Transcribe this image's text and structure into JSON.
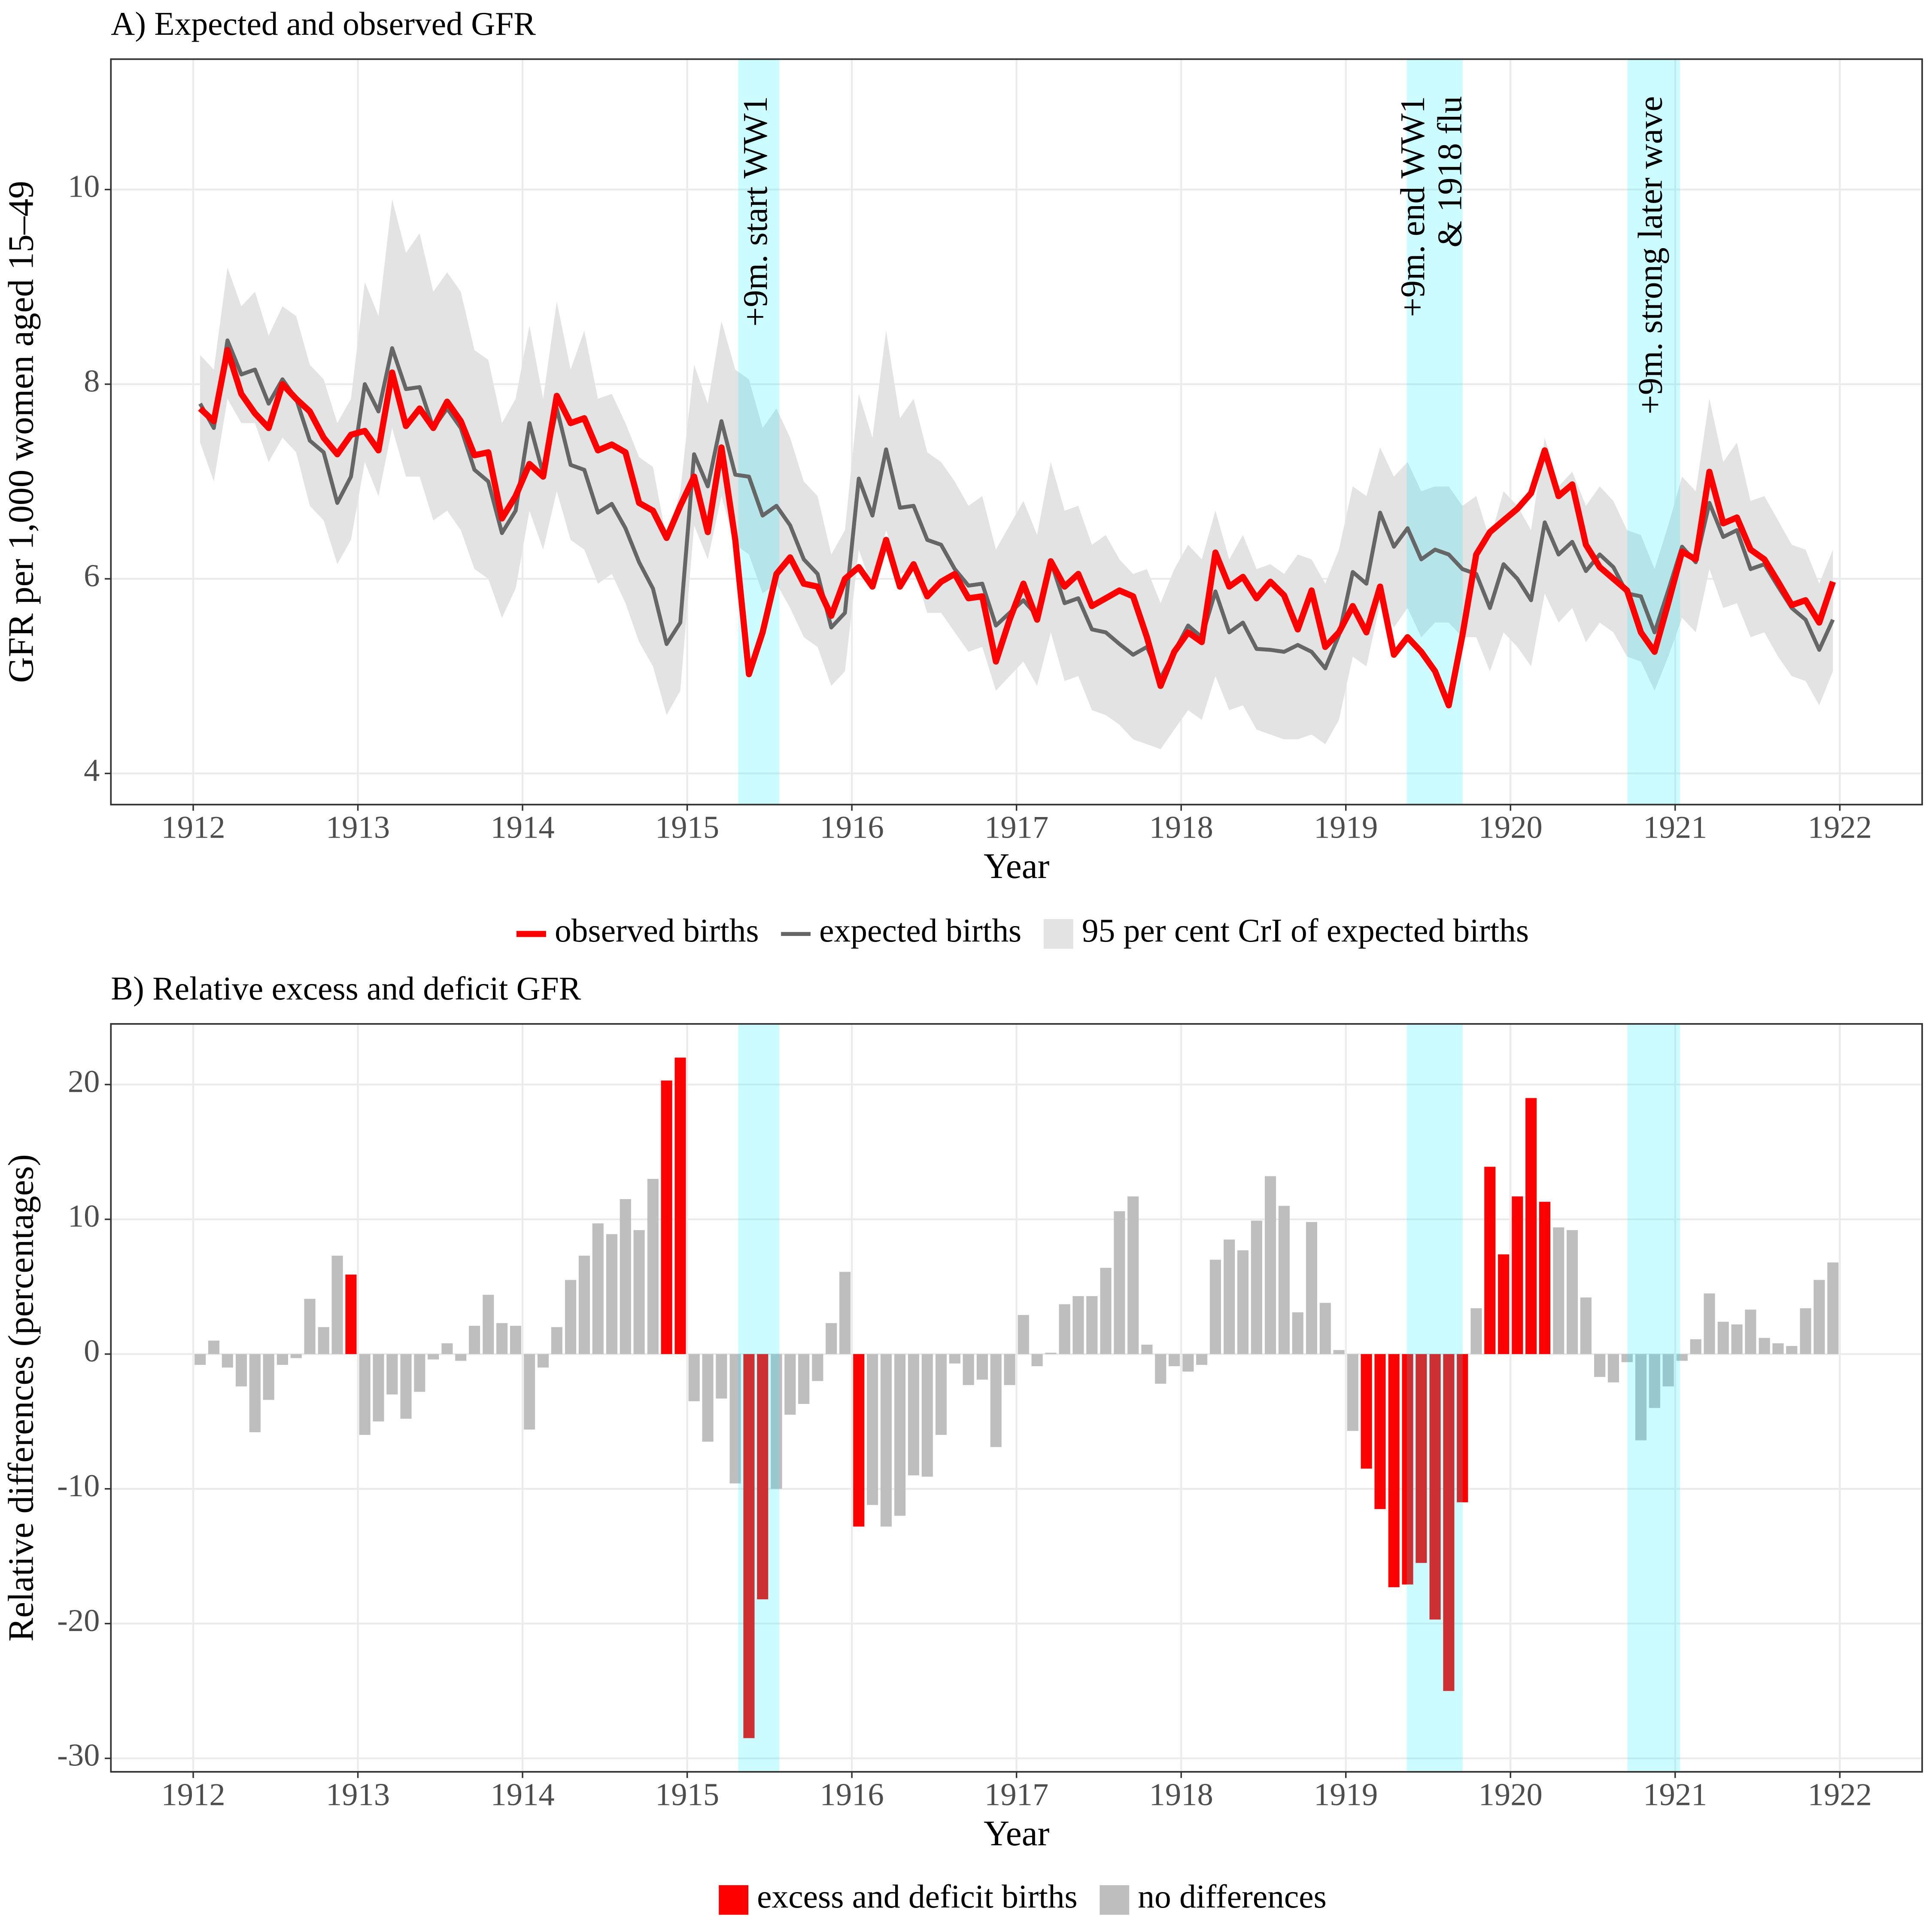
{
  "chart_data": [
    {
      "type": "line",
      "title": "A) Expected and observed GFR",
      "xlabel": "Year",
      "ylabel": "GFR per 1,000 women aged 15–49",
      "xlim": [
        1911.5,
        1922.5
      ],
      "xticks": [
        1912,
        1913,
        1914,
        1915,
        1916,
        1917,
        1918,
        1919,
        1920,
        1921,
        1922
      ],
      "ylim": [
        3.68,
        11.34
      ],
      "yticks": [
        4,
        6,
        8,
        10
      ],
      "grid": true,
      "legend": "bottom",
      "highlights": [
        {
          "xmin": 1915.31,
          "xmax": 1915.56,
          "color": "#00f0ff",
          "label": [
            "+9m. start WW1"
          ]
        },
        {
          "xmin": 1919.37,
          "xmax": 1919.71,
          "color": "#00f0ff",
          "label": [
            "+9m. end WW1",
            "& 1918 flu"
          ]
        },
        {
          "xmin": 1920.71,
          "xmax": 1921.03,
          "color": "#00f0ff",
          "label": [
            "+9m. strong later wave"
          ]
        }
      ],
      "x": [
        1912.042,
        1912.125,
        1912.208,
        1912.292,
        1912.375,
        1912.458,
        1912.542,
        1912.625,
        1912.708,
        1912.792,
        1912.875,
        1912.958,
        1913.042,
        1913.125,
        1913.208,
        1913.292,
        1913.375,
        1913.458,
        1913.542,
        1913.625,
        1913.708,
        1913.792,
        1913.875,
        1913.958,
        1914.042,
        1914.125,
        1914.208,
        1914.292,
        1914.375,
        1914.458,
        1914.542,
        1914.625,
        1914.708,
        1914.792,
        1914.875,
        1914.958,
        1915.042,
        1915.125,
        1915.208,
        1915.292,
        1915.375,
        1915.458,
        1915.542,
        1915.625,
        1915.708,
        1915.792,
        1915.875,
        1915.958,
        1916.042,
        1916.125,
        1916.208,
        1916.292,
        1916.375,
        1916.458,
        1916.542,
        1916.625,
        1916.708,
        1916.792,
        1916.875,
        1916.958,
        1917.042,
        1917.125,
        1917.208,
        1917.292,
        1917.375,
        1917.458,
        1917.542,
        1917.625,
        1917.708,
        1917.792,
        1917.875,
        1917.958,
        1918.042,
        1918.125,
        1918.208,
        1918.292,
        1918.375,
        1918.458,
        1918.542,
        1918.625,
        1918.708,
        1918.792,
        1918.875,
        1918.958,
        1919.042,
        1919.125,
        1919.208,
        1919.292,
        1919.375,
        1919.458,
        1919.542,
        1919.625,
        1919.708,
        1919.792,
        1919.875,
        1919.958,
        1920.042,
        1920.125,
        1920.208,
        1920.292,
        1920.375,
        1920.458,
        1920.542,
        1920.625,
        1920.708,
        1920.792,
        1920.875,
        1920.958,
        1921.042,
        1921.125,
        1921.208,
        1921.292,
        1921.375,
        1921.458,
        1921.542,
        1921.625,
        1921.708,
        1921.792,
        1921.875,
        1921.958
      ],
      "band": {
        "name": "95 per cent CrI of expected births",
        "color": "#e3e3e3",
        "upper": [
          8.3,
          8.15,
          9.2,
          8.8,
          8.95,
          8.5,
          8.8,
          8.7,
          8.2,
          8.05,
          7.6,
          7.85,
          9.05,
          8.7,
          9.9,
          9.35,
          9.55,
          8.95,
          9.15,
          8.95,
          8.35,
          8.25,
          7.6,
          7.85,
          8.6,
          7.85,
          8.85,
          8.15,
          8.55,
          7.85,
          7.9,
          7.6,
          7.25,
          7.15,
          6.4,
          6.9,
          8.2,
          7.8,
          8.65,
          8.15,
          8.05,
          7.55,
          7.75,
          7.45,
          7.0,
          6.85,
          6.25,
          6.5,
          7.9,
          7.45,
          8.55,
          7.65,
          7.85,
          7.3,
          7.2,
          7.0,
          6.75,
          6.85,
          6.3,
          6.55,
          6.8,
          6.45,
          7.2,
          6.7,
          6.75,
          6.35,
          6.45,
          6.2,
          6.05,
          6.1,
          5.75,
          6.1,
          6.35,
          6.2,
          6.7,
          6.2,
          6.45,
          6.1,
          6.15,
          6.05,
          6.25,
          6.2,
          5.95,
          6.3,
          6.95,
          6.85,
          7.35,
          7.05,
          7.2,
          6.9,
          6.95,
          6.95,
          6.75,
          6.85,
          6.4,
          6.9,
          6.75,
          6.5,
          7.45,
          6.95,
          7.1,
          6.75,
          6.95,
          6.8,
          6.5,
          6.45,
          6.1,
          6.55,
          7.05,
          6.9,
          7.85,
          7.2,
          7.4,
          6.8,
          6.85,
          6.6,
          6.35,
          6.3,
          5.95,
          6.3
        ],
        "lower": [
          7.4,
          7.0,
          7.85,
          7.6,
          7.6,
          7.2,
          7.45,
          7.3,
          6.75,
          6.6,
          6.15,
          6.4,
          7.2,
          6.85,
          7.55,
          7.05,
          7.05,
          6.6,
          6.7,
          6.5,
          6.1,
          6.0,
          5.6,
          5.9,
          6.7,
          6.3,
          6.9,
          6.4,
          6.3,
          5.95,
          6.05,
          5.75,
          5.35,
          5.1,
          4.6,
          4.85,
          6.55,
          6.2,
          6.85,
          6.35,
          6.25,
          5.85,
          5.95,
          5.7,
          5.4,
          5.3,
          4.9,
          5.05,
          6.3,
          5.9,
          6.5,
          6.05,
          6.1,
          5.65,
          5.65,
          5.45,
          5.25,
          5.3,
          4.85,
          5.0,
          5.15,
          4.9,
          5.45,
          4.95,
          5.0,
          4.65,
          4.6,
          4.5,
          4.35,
          4.3,
          4.25,
          4.45,
          4.65,
          4.55,
          5.0,
          4.65,
          4.7,
          4.45,
          4.4,
          4.35,
          4.35,
          4.4,
          4.3,
          4.55,
          5.2,
          5.1,
          5.75,
          5.5,
          5.7,
          5.4,
          5.55,
          5.55,
          5.4,
          5.4,
          5.05,
          5.45,
          5.3,
          5.1,
          5.85,
          5.55,
          5.7,
          5.35,
          5.55,
          5.45,
          5.2,
          5.15,
          4.85,
          5.2,
          5.6,
          5.45,
          6.1,
          5.7,
          5.75,
          5.4,
          5.45,
          5.2,
          5.0,
          4.95,
          4.7,
          5.05
        ]
      },
      "series": [
        {
          "name": "observed births",
          "color": "#ff0000",
          "values": [
            7.75,
            7.62,
            8.35,
            7.9,
            7.7,
            7.55,
            8.0,
            7.85,
            7.72,
            7.45,
            7.28,
            7.48,
            7.52,
            7.32,
            8.12,
            7.57,
            7.75,
            7.55,
            7.82,
            7.62,
            7.27,
            7.3,
            6.62,
            6.85,
            7.18,
            7.05,
            7.88,
            7.6,
            7.65,
            7.32,
            7.38,
            7.3,
            6.78,
            6.7,
            6.42,
            6.75,
            7.05,
            6.48,
            7.35,
            6.4,
            5.02,
            5.45,
            6.05,
            6.22,
            5.95,
            5.92,
            5.62,
            6.0,
            6.12,
            5.92,
            6.4,
            5.92,
            6.15,
            5.82,
            5.97,
            6.05,
            5.8,
            5.82,
            5.15,
            5.58,
            5.95,
            5.58,
            6.18,
            5.92,
            6.05,
            5.72,
            5.8,
            5.88,
            5.82,
            5.4,
            4.9,
            5.25,
            5.45,
            5.35,
            6.27,
            5.92,
            6.02,
            5.8,
            5.97,
            5.83,
            5.48,
            5.88,
            5.3,
            5.45,
            5.72,
            5.45,
            5.92,
            5.22,
            5.4,
            5.25,
            5.05,
            4.7,
            5.42,
            6.25,
            6.48,
            6.6,
            6.72,
            6.88,
            7.32,
            6.85,
            6.97,
            6.35,
            6.12,
            6.0,
            5.88,
            5.45,
            5.25,
            5.75,
            6.28,
            6.2,
            7.1,
            6.57,
            6.63,
            6.3,
            6.2,
            5.97,
            5.73,
            5.78,
            5.55,
            5.97
          ]
        },
        {
          "name": "expected births",
          "color": "#666666",
          "values": [
            7.8,
            7.55,
            8.45,
            8.1,
            8.15,
            7.8,
            8.05,
            7.85,
            7.42,
            7.3,
            6.78,
            7.05,
            8.0,
            7.72,
            8.37,
            7.95,
            7.97,
            7.55,
            7.75,
            7.55,
            7.12,
            7.0,
            6.47,
            6.7,
            7.6,
            7.08,
            7.75,
            7.17,
            7.12,
            6.68,
            6.77,
            6.52,
            6.17,
            5.9,
            5.33,
            5.55,
            7.28,
            6.95,
            7.62,
            7.07,
            7.05,
            6.65,
            6.75,
            6.55,
            6.2,
            6.05,
            5.5,
            5.65,
            7.03,
            6.65,
            7.33,
            6.73,
            6.75,
            6.4,
            6.35,
            6.1,
            5.93,
            5.95,
            5.52,
            5.65,
            5.78,
            5.62,
            6.18,
            5.75,
            5.8,
            5.48,
            5.45,
            5.33,
            5.22,
            5.3,
            4.98,
            5.25,
            5.52,
            5.4,
            5.87,
            5.45,
            5.55,
            5.28,
            5.27,
            5.25,
            5.32,
            5.25,
            5.08,
            5.42,
            6.07,
            5.95,
            6.68,
            6.33,
            6.52,
            6.2,
            6.3,
            6.25,
            6.1,
            6.05,
            5.7,
            6.15,
            6.0,
            5.78,
            6.58,
            6.25,
            6.38,
            6.08,
            6.25,
            6.12,
            5.85,
            5.82,
            5.45,
            5.88,
            6.33,
            6.17,
            6.78,
            6.43,
            6.5,
            6.1,
            6.15,
            5.92,
            5.7,
            5.58,
            5.27,
            5.58
          ]
        }
      ]
    },
    {
      "type": "bar",
      "title": "B) Relative excess and deficit GFR",
      "xlabel": "Year",
      "ylabel": "Relative differences (percentages)",
      "xlim": [
        1911.5,
        1922.5
      ],
      "xticks": [
        1912,
        1913,
        1914,
        1915,
        1916,
        1917,
        1918,
        1919,
        1920,
        1921,
        1922
      ],
      "ylim": [
        -31,
        24.5
      ],
      "yticks": [
        -30,
        -20,
        -10,
        0,
        10,
        20
      ],
      "grid": true,
      "legend": "bottom",
      "highlights": [
        {
          "xmin": 1915.31,
          "xmax": 1915.56,
          "color": "#00f0ff"
        },
        {
          "xmin": 1919.37,
          "xmax": 1919.71,
          "color": "#00f0ff"
        },
        {
          "xmin": 1920.71,
          "xmax": 1921.03,
          "color": "#00f0ff"
        }
      ],
      "x": [
        1912.042,
        1912.125,
        1912.208,
        1912.292,
        1912.375,
        1912.458,
        1912.542,
        1912.625,
        1912.708,
        1912.792,
        1912.875,
        1912.958,
        1913.042,
        1913.125,
        1913.208,
        1913.292,
        1913.375,
        1913.458,
        1913.542,
        1913.625,
        1913.708,
        1913.792,
        1913.875,
        1913.958,
        1914.042,
        1914.125,
        1914.208,
        1914.292,
        1914.375,
        1914.458,
        1914.542,
        1914.625,
        1914.708,
        1914.792,
        1914.875,
        1914.958,
        1915.042,
        1915.125,
        1915.208,
        1915.292,
        1915.375,
        1915.458,
        1915.542,
        1915.625,
        1915.708,
        1915.792,
        1915.875,
        1915.958,
        1916.042,
        1916.125,
        1916.208,
        1916.292,
        1916.375,
        1916.458,
        1916.542,
        1916.625,
        1916.708,
        1916.792,
        1916.875,
        1916.958,
        1917.042,
        1917.125,
        1917.208,
        1917.292,
        1917.375,
        1917.458,
        1917.542,
        1917.625,
        1917.708,
        1917.792,
        1917.875,
        1917.958,
        1918.042,
        1918.125,
        1918.208,
        1918.292,
        1918.375,
        1918.458,
        1918.542,
        1918.625,
        1918.708,
        1918.792,
        1918.875,
        1918.958,
        1919.042,
        1919.125,
        1919.208,
        1919.292,
        1919.375,
        1919.458,
        1919.542,
        1919.625,
        1919.708,
        1919.792,
        1919.875,
        1919.958,
        1920.042,
        1920.125,
        1920.208,
        1920.292,
        1920.375,
        1920.458,
        1920.542,
        1920.625,
        1920.708,
        1920.792,
        1920.875,
        1920.958,
        1921.042,
        1921.125,
        1921.208,
        1921.292,
        1921.375,
        1921.458,
        1921.542,
        1921.625,
        1921.708,
        1921.792,
        1921.875,
        1921.958
      ],
      "series": [
        {
          "name": "excess and deficit births",
          "color": "#ff0000",
          "values": [
            null,
            null,
            null,
            null,
            null,
            null,
            null,
            null,
            null,
            null,
            null,
            5.9,
            null,
            null,
            null,
            null,
            null,
            null,
            null,
            null,
            null,
            null,
            null,
            null,
            null,
            null,
            null,
            null,
            null,
            null,
            null,
            null,
            null,
            null,
            20.3,
            22,
            null,
            null,
            null,
            null,
            -28.5,
            -18.2,
            null,
            null,
            null,
            null,
            null,
            null,
            -12.8,
            null,
            null,
            null,
            null,
            null,
            null,
            null,
            null,
            null,
            null,
            null,
            null,
            null,
            null,
            null,
            null,
            null,
            null,
            null,
            null,
            null,
            null,
            null,
            null,
            null,
            null,
            null,
            null,
            null,
            null,
            null,
            null,
            null,
            null,
            null,
            null,
            -8.5,
            -11.5,
            -17.3,
            -17.1,
            -15.5,
            -19.7,
            -25,
            -11,
            null,
            13.9,
            7.4,
            11.7,
            19,
            11.3,
            null,
            null,
            null,
            null,
            null,
            null,
            null,
            null,
            null,
            null,
            null,
            null,
            null,
            null,
            null,
            null,
            null,
            null,
            null,
            null,
            null
          ]
        },
        {
          "name": "no differences",
          "color": "#bebebe",
          "values": [
            -0.8,
            1,
            -1,
            -2.4,
            -5.8,
            -3.4,
            -0.8,
            -0.3,
            4.1,
            2,
            7.3,
            null,
            -6,
            -5,
            -3,
            -4.8,
            -2.8,
            -0.4,
            0.8,
            -0.5,
            2.1,
            4.4,
            2.3,
            2.1,
            -5.6,
            -1,
            2,
            5.5,
            7.3,
            9.7,
            8.9,
            11.5,
            9.2,
            13,
            null,
            null,
            -3.5,
            -6.5,
            -3.3,
            -9.6,
            null,
            null,
            -10,
            -4.5,
            -3.7,
            -2,
            2.3,
            6.1,
            null,
            -11.2,
            -12.8,
            -12,
            -9,
            -9.1,
            -6,
            -0.7,
            -2.3,
            -1.9,
            -6.9,
            -2.3,
            2.9,
            -0.9,
            0.1,
            3.7,
            4.3,
            4.3,
            6.4,
            10.6,
            11.7,
            0.7,
            -2.2,
            -0.9,
            -1.3,
            -0.8,
            7,
            8.5,
            7.7,
            9.9,
            13.2,
            11,
            3.1,
            9.8,
            3.8,
            0.3,
            -5.7,
            null,
            null,
            null,
            null,
            null,
            null,
            null,
            null,
            3.4,
            null,
            null,
            null,
            null,
            null,
            9.4,
            9.2,
            4.2,
            -1.7,
            -2.1,
            -0.6,
            -6.4,
            -4,
            -2.4,
            -0.5,
            1.1,
            4.5,
            2.4,
            2.2,
            3.3,
            1.2,
            0.8,
            0.6,
            3.4,
            5.5,
            6.8
          ]
        }
      ]
    }
  ]
}
